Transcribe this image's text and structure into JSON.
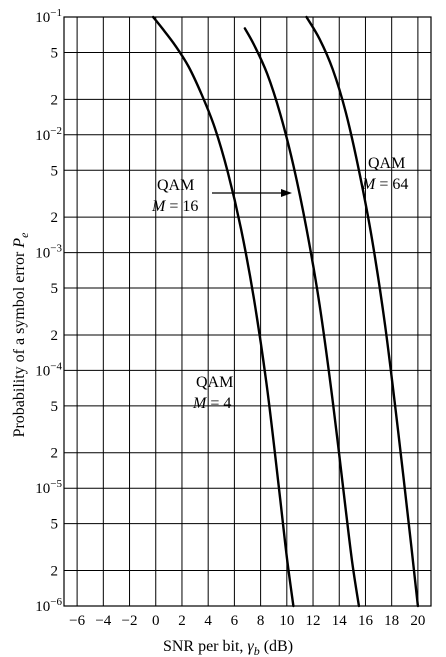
{
  "chart_data": {
    "type": "line",
    "xlabel": "SNR per bit, γb (dB)",
    "ylabel": "Probability of a symbol error Pe",
    "xlabel_parts": {
      "prefix": "SNR per bit, ",
      "symbol": "γ",
      "sub": "b",
      "suffix": " (dB)"
    },
    "ylabel_parts": {
      "prefix": "Probability of a symbol error ",
      "symbol": "P",
      "sub": "e"
    },
    "xlim": [
      -7,
      21
    ],
    "ylim": [
      1e-06,
      0.1
    ],
    "yscale": "log",
    "grid": true,
    "x_ticks": [
      {
        "value": -6,
        "label": "−6"
      },
      {
        "value": -4,
        "label": "−4"
      },
      {
        "value": -2,
        "label": "−2"
      },
      {
        "value": 0,
        "label": "0"
      },
      {
        "value": 2,
        "label": "2"
      },
      {
        "value": 4,
        "label": "4"
      },
      {
        "value": 6,
        "label": "6"
      },
      {
        "value": 8,
        "label": "8"
      },
      {
        "value": 10,
        "label": "10"
      },
      {
        "value": 12,
        "label": "12"
      },
      {
        "value": 14,
        "label": "14"
      },
      {
        "value": 16,
        "label": "16"
      },
      {
        "value": 18,
        "label": "18"
      },
      {
        "value": 20,
        "label": "20"
      }
    ],
    "y_ticks": [
      {
        "value": 0.1,
        "base": "10",
        "exp": "−1"
      },
      {
        "value": 0.05,
        "label": "5"
      },
      {
        "value": 0.02,
        "label": "2"
      },
      {
        "value": 0.01,
        "base": "10",
        "exp": "−2"
      },
      {
        "value": 0.005,
        "label": "5"
      },
      {
        "value": 0.002,
        "label": "2"
      },
      {
        "value": 0.001,
        "base": "10",
        "exp": "−3"
      },
      {
        "value": 0.0005,
        "label": "5"
      },
      {
        "value": 0.0002,
        "label": "2"
      },
      {
        "value": 0.0001,
        "base": "10",
        "exp": "−4"
      },
      {
        "value": 5e-05,
        "label": "5"
      },
      {
        "value": 2e-05,
        "label": "2"
      },
      {
        "value": 1e-05,
        "base": "10",
        "exp": "−5"
      },
      {
        "value": 5e-06,
        "label": "5"
      },
      {
        "value": 2e-06,
        "label": "2"
      },
      {
        "value": 1e-06,
        "base": "10",
        "exp": "−6"
      }
    ],
    "series": [
      {
        "key": "m4",
        "x": [
          -0.2,
          0.5,
          1.5,
          2.5,
          3.5,
          4.5,
          5.5,
          6.5,
          7.5,
          8.5,
          9.5,
          10.0,
          10.5
        ],
        "y": [
          0.1,
          0.08,
          0.057,
          0.038,
          0.022,
          0.0115,
          0.0048,
          0.0016,
          0.0004,
          7e-05,
          8e-06,
          2.6e-06,
          1e-06
        ]
      },
      {
        "key": "m16",
        "x": [
          6.8,
          7.5,
          8.5,
          9.5,
          10.5,
          11.5,
          12.5,
          13.5,
          14.5,
          15.0,
          15.5
        ],
        "y": [
          0.08,
          0.058,
          0.033,
          0.015,
          0.0055,
          0.0016,
          0.00036,
          5.5e-05,
          6.5e-06,
          2.3e-06,
          1e-06
        ]
      },
      {
        "key": "m64",
        "x": [
          11.5,
          12.5,
          13.5,
          14.5,
          15.5,
          16.5,
          17.5,
          18.5,
          19.5,
          20.0
        ],
        "y": [
          0.1,
          0.065,
          0.036,
          0.0155,
          0.005,
          0.0013,
          0.00024,
          3e-05,
          3.2e-06,
          1e-06
        ]
      }
    ],
    "annotations": [
      {
        "key": "m4",
        "text": "QAM",
        "m_prefix": "M",
        "m_value": " = 4"
      },
      {
        "key": "m16",
        "text": "QAM",
        "m_prefix": "M",
        "m_value": " = 16"
      },
      {
        "key": "m64",
        "text": "QAM",
        "m_prefix": "M",
        "m_value": " = 64"
      }
    ]
  }
}
